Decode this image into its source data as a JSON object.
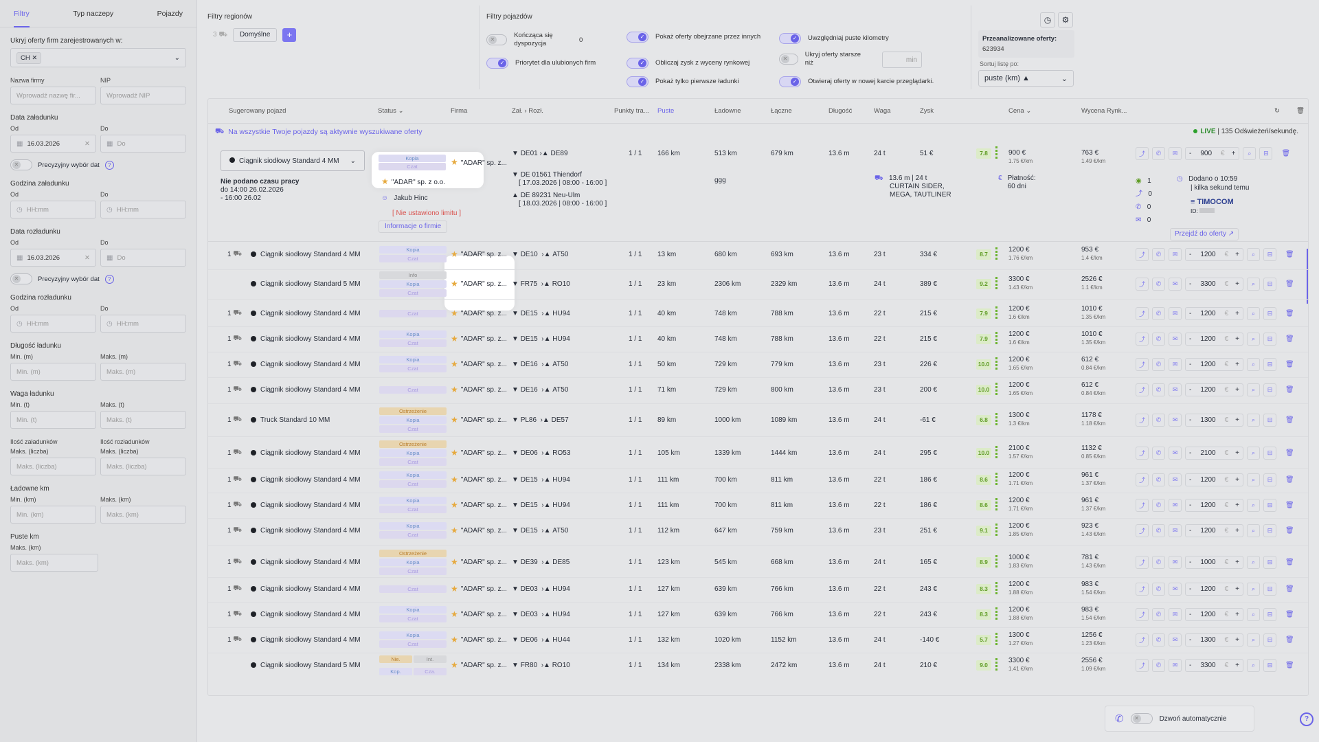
{
  "sidebar": {
    "tabs": [
      "Filtry",
      "Typ naczepy",
      "Pojazdy"
    ],
    "hide_label": "Ukryj oferty firm zarejestrowanych w:",
    "country_chip": "CH",
    "company_label": "Nazwa firmy",
    "company_ph": "Wprowadź nazwę fir...",
    "nip_label": "NIP",
    "nip_ph": "Wprowadź NIP",
    "load_date_label": "Data załadunku",
    "from": "Od",
    "to": "Do",
    "load_date_from": "16.03.2026",
    "date_ph": "Do",
    "precise": "Precyzyjny wybór dat",
    "load_time_label": "Godzina załadunku",
    "time_ph": "HH:mm",
    "unload_date_label": "Data rozładunku",
    "unload_date_from": "16.03.2026",
    "unload_time_label": "Godzina rozładunku",
    "length_label": "Długość ładunku",
    "min_m": "Min. (m)",
    "max_m": "Maks. (m)",
    "weight_label": "Waga ładunku",
    "min_t": "Min. (t)",
    "max_t": "Maks. (t)",
    "loads_count": "Ilość załadunków",
    "unloads_count": "Ilość rozładunków",
    "max_count": "Maks. (liczba)",
    "loaded_km": "Ładowne km",
    "min_km": "Min. (km)",
    "max_km": "Maks. (km)",
    "empty_km": "Puste km"
  },
  "regions": {
    "title": "Filtry regionów",
    "count": "3",
    "default_btn": "Domyślne",
    "plus": "+"
  },
  "vehicles_filters": {
    "title": "Filtry pojazdów",
    "f1": "Kończąca się dyspozycja",
    "f1_val": "0",
    "f2": "Priorytet dla ulubionych firm",
    "f3": "Pokaż oferty obejrzane przez innych",
    "f4": "Obliczaj zysk z wyceny rynkowej",
    "f5": "Pokaż tylko pierwsze ładunki",
    "f6": "Uwzględniaj puste kilometry",
    "f7": "Ukryj oferty starsze niż",
    "f7_unit": "min",
    "f8": "Otwieraj oferty w nowej karcie przeglądarki."
  },
  "analyzed": {
    "label": "Przeanalizowane oferty:",
    "value": "623934",
    "sort_label": "Sortuj listę po:",
    "sort_value": "puste (km) ▲"
  },
  "columns": [
    "Sugerowany pojazd",
    "Status",
    "Firma",
    "Zał.",
    "Rozł.",
    "Punkty tra...",
    "Puste",
    "Ładowne",
    "Łączne",
    "Długość",
    "Waga",
    "Zysk",
    "Cena",
    "Wycena Rynk..."
  ],
  "info_bar": "Na wszystkie Twoje pojazdy są aktywnie wyszukiwane oferty",
  "live": {
    "label": "LIVE",
    "rest": " | 135 Odświeżeń/sekundę."
  },
  "expanded": {
    "vehicle": "Ciągnik siodłowy Standard 4 MM",
    "work1": "Nie podano czasu pracy",
    "work2": "do 14:00 26.02.2026",
    "work3": "- 16:00 26.02",
    "tags": [
      "Kopia",
      "Czat"
    ],
    "company_short": "\"ADAR\" sp. z...",
    "company_full": "\"ADAR\" sp. z o.o.",
    "person": "Jakub Hinc",
    "limit": "[ Nie ustawiono limitu ]",
    "company_info": "Informacje o firmie",
    "from": "DE01",
    "to": "DE89",
    "from_full": "DE 01561 Thiendorf",
    "from_date": "[ 17.03.2026 | 08:00 - 16:00 ]",
    "to_full": "DE 89231 Neu-Ulm",
    "to_date": "[ 18.03.2026 | 08:00 - 16:00 ]",
    "points": "1 / 1",
    "empty": "166 km",
    "loaded": "513 km",
    "total": "679 km",
    "length": "13.6 m",
    "weight": "24 t",
    "profit": "51 €",
    "goods": "ggg",
    "truck_info1": "13.6 m | 24 t",
    "truck_info2": "CURTAIN SIDER,",
    "truck_info3": "MEGA, TAUTLINER",
    "score": "7.8",
    "price": "900 €",
    "price_sub": "1.75 €/km",
    "market": "763 €",
    "market_sub": "1.49 €/km",
    "payment": "Płatność:",
    "payment_days": "60 dni",
    "stats": [
      "1",
      "0",
      "0",
      "0"
    ],
    "added": "Dodano o 10:59",
    "added2": "| kilka sekund temu",
    "source": "TIMOCOM",
    "id_label": "ID:",
    "goto": "Przejdź do oferty ↗",
    "stepper": "900"
  },
  "rows": [
    {
      "n": "1",
      "veh": "Ciągnik siodłowy Standard 4 MM",
      "tags": [
        "Kopia",
        "Czat"
      ],
      "from": "DE10",
      "to": "AT50",
      "emp": "13 km",
      "load": "680 km",
      "tot": "693 km",
      "len": "13.6 m",
      "w": "23 t",
      "profit": "334 €",
      "score": "8.7",
      "price": "1200 €",
      "psub": "1.76 €/km",
      "mk": "953 €",
      "msub": "1.4 €/km",
      "step": "1200"
    },
    {
      "n": "",
      "veh": "Ciągnik siodłowy Standard 5 MM",
      "tags": [
        "Info",
        "Kopia",
        "Czat"
      ],
      "from": "FR75",
      "to": "RO10",
      "emp": "23 km",
      "load": "2306 km",
      "tot": "2329 km",
      "len": "13.6 m",
      "w": "24 t",
      "profit": "389 €",
      "score": "9.2",
      "price": "3300 €",
      "psub": "1.43 €/km",
      "mk": "2526 €",
      "msub": "1.1 €/km",
      "step": "3300"
    },
    {
      "n": "1",
      "veh": "Ciągnik siodłowy Standard 4 MM",
      "tags": [
        "Czat"
      ],
      "from": "DE15",
      "to": "HU94",
      "emp": "40 km",
      "load": "748 km",
      "tot": "788 km",
      "len": "13.6 m",
      "w": "22 t",
      "profit": "215 €",
      "score": "7.9",
      "price": "1200 €",
      "psub": "1.6 €/km",
      "mk": "1010 €",
      "msub": "1.35 €/km",
      "step": "1200"
    },
    {
      "n": "1",
      "veh": "Ciągnik siodłowy Standard 4 MM",
      "tags": [
        "Kopia",
        "Czat"
      ],
      "from": "DE15",
      "to": "HU94",
      "emp": "40 km",
      "load": "748 km",
      "tot": "788 km",
      "len": "13.6 m",
      "w": "22 t",
      "profit": "215 €",
      "score": "7.9",
      "price": "1200 €",
      "psub": "1.6 €/km",
      "mk": "1010 €",
      "msub": "1.35 €/km",
      "step": "1200"
    },
    {
      "n": "1",
      "veh": "Ciągnik siodłowy Standard 4 MM",
      "tags": [
        "Kopia",
        "Czat"
      ],
      "from": "DE16",
      "to": "AT50",
      "emp": "50 km",
      "load": "729 km",
      "tot": "779 km",
      "len": "13.6 m",
      "w": "23 t",
      "profit": "226 €",
      "score": "10.0",
      "price": "1200 €",
      "psub": "1.65 €/km",
      "mk": "612 €",
      "msub": "0.84 €/km",
      "step": "1200"
    },
    {
      "n": "1",
      "veh": "Ciągnik siodłowy Standard 4 MM",
      "tags": [
        "Czat"
      ],
      "from": "DE16",
      "to": "AT50",
      "emp": "71 km",
      "load": "729 km",
      "tot": "800 km",
      "len": "13.6 m",
      "w": "23 t",
      "profit": "200 €",
      "score": "10.0",
      "price": "1200 €",
      "psub": "1.65 €/km",
      "mk": "612 €",
      "msub": "0.84 €/km",
      "step": "1200"
    },
    {
      "n": "1",
      "veh": "Truck Standard 10 MM",
      "tags": [
        "Ostrzeżenie",
        "Kopia",
        "Czat"
      ],
      "from": "PL86",
      "to": "DE57",
      "emp": "89 km",
      "load": "1000 km",
      "tot": "1089 km",
      "len": "13.6 m",
      "w": "24 t",
      "profit": "-61 €",
      "score": "6.8",
      "price": "1300 €",
      "psub": "1.3 €/km",
      "mk": "1178 €",
      "msub": "1.18 €/km",
      "step": "1300"
    },
    {
      "n": "1",
      "veh": "Ciągnik siodłowy Standard 4 MM",
      "tags": [
        "Ostrzeżenie",
        "Kopia",
        "Czat"
      ],
      "from": "DE06",
      "to": "RO53",
      "emp": "105 km",
      "load": "1339 km",
      "tot": "1444 km",
      "len": "13.6 m",
      "w": "24 t",
      "profit": "295 €",
      "score": "10.0",
      "price": "2100 €",
      "psub": "1.57 €/km",
      "mk": "1132 €",
      "msub": "0.85 €/km",
      "step": "2100"
    },
    {
      "n": "1",
      "veh": "Ciągnik siodłowy Standard 4 MM",
      "tags": [
        "Kopia",
        "Czat"
      ],
      "from": "DE15",
      "to": "HU94",
      "emp": "111 km",
      "load": "700 km",
      "tot": "811 km",
      "len": "13.6 m",
      "w": "22 t",
      "profit": "186 €",
      "score": "8.6",
      "price": "1200 €",
      "psub": "1.71 €/km",
      "mk": "961 €",
      "msub": "1.37 €/km",
      "step": "1200"
    },
    {
      "n": "1",
      "veh": "Ciągnik siodłowy Standard 4 MM",
      "tags": [
        "Kopia",
        "Czat"
      ],
      "from": "DE15",
      "to": "HU94",
      "emp": "111 km",
      "load": "700 km",
      "tot": "811 km",
      "len": "13.6 m",
      "w": "22 t",
      "profit": "186 €",
      "score": "8.6",
      "price": "1200 €",
      "psub": "1.71 €/km",
      "mk": "961 €",
      "msub": "1.37 €/km",
      "step": "1200"
    },
    {
      "n": "1",
      "veh": "Ciągnik siodłowy Standard 4 MM",
      "tags": [
        "Kopia",
        "Czat"
      ],
      "from": "DE15",
      "to": "AT50",
      "emp": "112 km",
      "load": "647 km",
      "tot": "759 km",
      "len": "13.6 m",
      "w": "23 t",
      "profit": "251 €",
      "score": "9.1",
      "price": "1200 €",
      "psub": "1.85 €/km",
      "mk": "923 €",
      "msub": "1.43 €/km",
      "step": "1200"
    },
    {
      "n": "1",
      "veh": "Ciągnik siodłowy Standard 4 MM",
      "tags": [
        "Ostrzeżenie",
        "Kopia",
        "Czat"
      ],
      "from": "DE39",
      "to": "DE85",
      "emp": "123 km",
      "load": "545 km",
      "tot": "668 km",
      "len": "13.6 m",
      "w": "24 t",
      "profit": "165 €",
      "score": "8.9",
      "price": "1000 €",
      "psub": "1.83 €/km",
      "mk": "781 €",
      "msub": "1.43 €/km",
      "step": "1000"
    },
    {
      "n": "1",
      "veh": "Ciągnik siodłowy Standard 4 MM",
      "tags": [
        "Czat"
      ],
      "from": "DE03",
      "to": "HU94",
      "emp": "127 km",
      "load": "639 km",
      "tot": "766 km",
      "len": "13.6 m",
      "w": "22 t",
      "profit": "243 €",
      "score": "8.3",
      "price": "1200 €",
      "psub": "1.88 €/km",
      "mk": "983 €",
      "msub": "1.54 €/km",
      "step": "1200"
    },
    {
      "n": "1",
      "veh": "Ciągnik siodłowy Standard 4 MM",
      "tags": [
        "Kopia",
        "Czat"
      ],
      "from": "DE03",
      "to": "HU94",
      "emp": "127 km",
      "load": "639 km",
      "tot": "766 km",
      "len": "13.6 m",
      "w": "22 t",
      "profit": "243 €",
      "score": "8.3",
      "price": "1200 €",
      "psub": "1.88 €/km",
      "mk": "983 €",
      "msub": "1.54 €/km",
      "step": "1200"
    },
    {
      "n": "1",
      "veh": "Ciągnik siodłowy Standard 4 MM",
      "tags": [
        "Kopia",
        "Czat"
      ],
      "from": "DE06",
      "to": "HU44",
      "emp": "132 km",
      "load": "1020 km",
      "tot": "1152 km",
      "len": "13.6 m",
      "w": "24 t",
      "profit": "-140 €",
      "score": "5.7",
      "price": "1300 €",
      "psub": "1.27 €/km",
      "mk": "1256 €",
      "msub": "1.23 €/km",
      "step": "1300"
    },
    {
      "n": "",
      "veh": "Ciągnik siodłowy Standard 5 MM",
      "tags": [
        "Nie.",
        "Int.",
        "Kop.",
        "Cza."
      ],
      "from": "FR80",
      "to": "RO10",
      "emp": "134 km",
      "load": "2338 km",
      "tot": "2472 km",
      "len": "13.6 m",
      "w": "24 t",
      "profit": "210 €",
      "score": "9.0",
      "price": "3300 €",
      "psub": "1.41 €/km",
      "mk": "2556 €",
      "msub": "1.09 €/km",
      "step": "3300"
    }
  ],
  "company": "\"ADAR\" sp. z...",
  "points": "1 / 1",
  "auto_call": "Dzwoń automatycznie",
  "colors": {
    "accent": "#6a63e8",
    "green": "#5d9b22"
  }
}
